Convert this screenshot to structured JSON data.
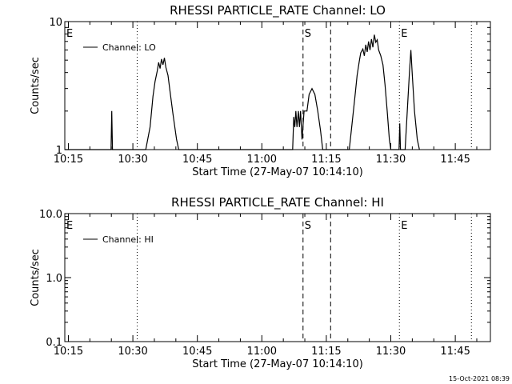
{
  "footer": {
    "timestamp": "15-Oct-2021 08:39"
  },
  "chart_data": [
    {
      "type": "line",
      "title": "RHESSI PARTICLE_RATE Channel: LO",
      "xlabel": "Start Time (27-May-07 10:14:10)",
      "ylabel": "Counts/sec",
      "yscale": "log",
      "xlim": [
        "10:14:10",
        "11:53:10"
      ],
      "ylim": [
        1,
        10
      ],
      "x_ticks": [
        "10:15",
        "10:30",
        "10:45",
        "11:00",
        "11:15",
        "11:30",
        "11:45"
      ],
      "y_ticks": [
        "1",
        "10"
      ],
      "legend": {
        "entries": [
          "Channel: LO"
        ],
        "position": "top-left"
      },
      "markers": [
        {
          "time": "10:14:10",
          "label": "E",
          "style": "none"
        },
        {
          "time": "10:31:00",
          "label": "",
          "style": "dotted"
        },
        {
          "time": "11:09:35",
          "label": "S",
          "style": "dashed"
        },
        {
          "time": "11:16:00",
          "label": "",
          "style": "dashed"
        },
        {
          "time": "11:32:00",
          "label": "E",
          "style": "dotted"
        },
        {
          "time": "11:48:45",
          "label": "",
          "style": "dotted"
        }
      ],
      "series": [
        {
          "name": "Channel: LO",
          "points": [
            [
              "10:14:10",
              1.0
            ],
            [
              "10:24:55",
              1.0
            ],
            [
              "10:25:05",
              2.0
            ],
            [
              "10:25:15",
              1.0
            ],
            [
              "10:33:00",
              1.0
            ],
            [
              "10:34:00",
              1.5
            ],
            [
              "10:34:40",
              2.6
            ],
            [
              "10:35:10",
              3.4
            ],
            [
              "10:35:40",
              4.1
            ],
            [
              "10:36:00",
              4.8
            ],
            [
              "10:36:20",
              4.3
            ],
            [
              "10:36:40",
              5.1
            ],
            [
              "10:37:00",
              4.6
            ],
            [
              "10:37:20",
              5.2
            ],
            [
              "10:37:40",
              4.4
            ],
            [
              "10:38:10",
              3.8
            ],
            [
              "10:38:40",
              2.8
            ],
            [
              "10:39:20",
              1.9
            ],
            [
              "10:40:10",
              1.2
            ],
            [
              "10:40:40",
              1.0
            ],
            [
              "11:07:10",
              1.0
            ],
            [
              "11:07:25",
              1.8
            ],
            [
              "11:07:40",
              1.5
            ],
            [
              "11:07:55",
              2.0
            ],
            [
              "11:08:10",
              1.5
            ],
            [
              "11:08:30",
              2.0
            ],
            [
              "11:08:45",
              1.5
            ],
            [
              "11:09:00",
              2.0
            ],
            [
              "11:09:20",
              1.2
            ],
            [
              "11:09:50",
              2.0
            ],
            [
              "11:10:30",
              2.0
            ],
            [
              "11:11:00",
              2.7
            ],
            [
              "11:11:40",
              3.0
            ],
            [
              "11:12:20",
              2.7
            ],
            [
              "11:13:00",
              2.0
            ],
            [
              "11:13:40",
              1.4
            ],
            [
              "11:14:10",
              1.0
            ],
            [
              "11:20:20",
              1.0
            ],
            [
              "11:21:00",
              1.6
            ],
            [
              "11:21:40",
              2.6
            ],
            [
              "11:22:10",
              3.8
            ],
            [
              "11:22:40",
              4.9
            ],
            [
              "11:23:00",
              5.7
            ],
            [
              "11:23:30",
              6.1
            ],
            [
              "11:23:50",
              5.4
            ],
            [
              "11:24:10",
              6.6
            ],
            [
              "11:24:30",
              5.8
            ],
            [
              "11:24:50",
              7.0
            ],
            [
              "11:25:10",
              6.0
            ],
            [
              "11:25:30",
              7.3
            ],
            [
              "11:25:50",
              6.3
            ],
            [
              "11:26:10",
              7.9
            ],
            [
              "11:26:30",
              6.9
            ],
            [
              "11:26:50",
              7.2
            ],
            [
              "11:27:10",
              6.0
            ],
            [
              "11:27:40",
              5.4
            ],
            [
              "11:28:10",
              4.6
            ],
            [
              "11:28:40",
              3.2
            ],
            [
              "11:29:10",
              2.0
            ],
            [
              "11:29:40",
              1.2
            ],
            [
              "11:30:00",
              1.0
            ],
            [
              "11:31:55",
              1.0
            ],
            [
              "11:32:05",
              1.6
            ],
            [
              "11:32:15",
              1.0
            ],
            [
              "11:33:20",
              1.0
            ],
            [
              "11:33:50",
              2.0
            ],
            [
              "11:34:20",
              4.0
            ],
            [
              "11:34:40",
              6.0
            ],
            [
              "11:35:00",
              3.8
            ],
            [
              "11:35:30",
              2.0
            ],
            [
              "11:36:10",
              1.2
            ],
            [
              "11:36:40",
              1.0
            ]
          ]
        }
      ]
    },
    {
      "type": "line",
      "title": "RHESSI PARTICLE_RATE Channel: HI",
      "xlabel": "Start Time (27-May-07 10:14:10)",
      "ylabel": "Counts/sec",
      "yscale": "log",
      "xlim": [
        "10:14:10",
        "11:53:10"
      ],
      "ylim": [
        0.1,
        10
      ],
      "x_ticks": [
        "10:15",
        "10:30",
        "10:45",
        "11:00",
        "11:15",
        "11:30",
        "11:45"
      ],
      "y_ticks": [
        "0.1",
        "1.0",
        "10.0"
      ],
      "legend": {
        "entries": [
          "Channel: HI"
        ],
        "position": "top-left"
      },
      "markers": [
        {
          "time": "10:14:10",
          "label": "E",
          "style": "none"
        },
        {
          "time": "10:31:00",
          "label": "",
          "style": "dotted"
        },
        {
          "time": "11:09:35",
          "label": "S",
          "style": "dashed"
        },
        {
          "time": "11:16:00",
          "label": "",
          "style": "dashed"
        },
        {
          "time": "11:32:00",
          "label": "E",
          "style": "dotted"
        },
        {
          "time": "11:48:45",
          "label": "",
          "style": "dotted"
        }
      ],
      "series": [
        {
          "name": "Channel: HI",
          "points": []
        }
      ]
    }
  ]
}
